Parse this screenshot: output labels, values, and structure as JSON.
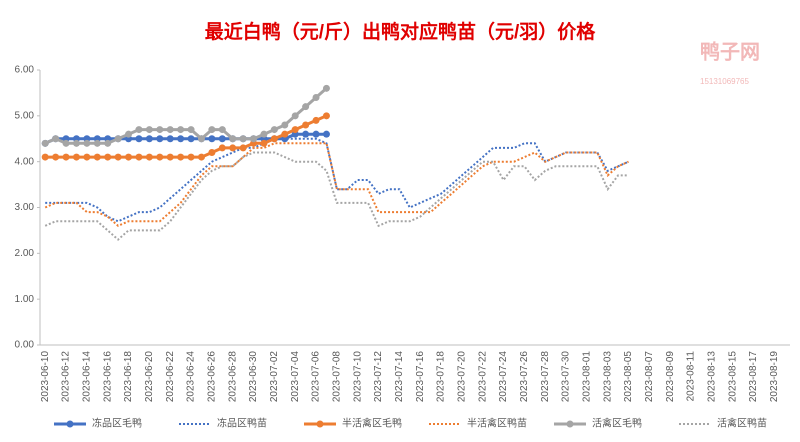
{
  "chart_data": {
    "type": "line",
    "title": "最近白鸭（元/斤）出鸭对应鸭苗（元/羽）价格",
    "watermark": "鸭子网",
    "watermark_phone": "15131069765",
    "categories": [
      "2023-06-10",
      null,
      "2023-06-12",
      null,
      "2023-06-14",
      null,
      "2023-06-16",
      null,
      "2023-06-18",
      null,
      "2023-06-20",
      null,
      "2023-06-22",
      null,
      "2023-06-24",
      null,
      "2023-06-26",
      null,
      "2023-06-28",
      null,
      "2023-06-30",
      null,
      "2023-07-02",
      null,
      "2023-07-04",
      null,
      "2023-07-06",
      null,
      "2023-07-08",
      null,
      "2023-07-10",
      null,
      "2023-07-12",
      null,
      "2023-07-14",
      null,
      "2023-07-16",
      null,
      "2023-07-18",
      null,
      "2023-07-20",
      null,
      "2023-07-22",
      null,
      "2023-07-24",
      null,
      "2023-07-26",
      null,
      "2023-07-28",
      null,
      "2023-07-30",
      null,
      "2023-08-01",
      null,
      "2023-08-03",
      null,
      "2023-08-05",
      null,
      "2023-08-07",
      null,
      "2023-08-09",
      null,
      "2023-08-11",
      null,
      "2023-08-13",
      null,
      "2023-08-15",
      null,
      "2023-08-17",
      null,
      "2023-08-19",
      null
    ],
    "ylim": [
      0,
      6
    ],
    "yticks": [
      {
        "value": 0,
        "label": "0.00"
      },
      {
        "value": 1,
        "label": "1.00"
      },
      {
        "value": 2,
        "label": "2.00"
      },
      {
        "value": 3,
        "label": "3.00"
      },
      {
        "value": 4,
        "label": "4.00"
      },
      {
        "value": 5,
        "label": "5.00"
      },
      {
        "value": 6,
        "label": "6.00"
      }
    ],
    "legend": "bottom",
    "series": [
      {
        "name": "冻品区毛鸭",
        "color": "#4472c4",
        "style": "solid",
        "marker": true,
        "values": [
          4.4,
          4.5,
          4.5,
          4.5,
          4.5,
          4.5,
          4.5,
          4.5,
          4.5,
          4.5,
          4.5,
          4.5,
          4.5,
          4.5,
          4.5,
          4.5,
          4.5,
          4.5,
          4.5,
          4.5,
          4.5,
          4.5,
          4.5,
          4.5,
          4.6,
          4.6,
          4.6,
          4.6,
          null,
          null,
          null,
          null,
          null,
          null,
          null,
          null,
          null,
          null,
          null,
          null,
          null,
          null,
          null,
          null,
          null,
          null,
          null,
          null,
          null,
          null,
          null,
          null,
          null,
          null,
          null,
          null,
          null,
          null,
          null,
          null,
          null,
          null,
          null,
          null,
          null,
          null,
          null,
          null,
          null,
          null,
          null,
          null
        ]
      },
      {
        "name": "冻品区鸭苗",
        "color": "#4472c4",
        "style": "dotted",
        "marker": false,
        "values": [
          3.1,
          3.1,
          3.1,
          3.1,
          3.1,
          3.0,
          2.8,
          2.7,
          2.8,
          2.9,
          2.9,
          3.0,
          3.2,
          3.4,
          3.6,
          3.8,
          4.0,
          4.1,
          4.2,
          4.3,
          4.3,
          4.4,
          4.5,
          4.5,
          4.5,
          4.5,
          4.5,
          4.4,
          3.4,
          3.4,
          3.6,
          3.6,
          3.3,
          3.4,
          3.4,
          3.0,
          3.1,
          3.2,
          3.3,
          3.5,
          3.7,
          3.9,
          4.1,
          4.3,
          4.3,
          4.3,
          4.4,
          4.4,
          4.0,
          4.1,
          4.2,
          4.2,
          4.2,
          4.2,
          3.8,
          3.9,
          4.0,
          null,
          null,
          null,
          null,
          null,
          null,
          null,
          null,
          null,
          null,
          null,
          null,
          null,
          null,
          null
        ]
      },
      {
        "name": "半活禽区毛鸭",
        "color": "#ed7d31",
        "style": "solid",
        "marker": true,
        "values": [
          4.1,
          4.1,
          4.1,
          4.1,
          4.1,
          4.1,
          4.1,
          4.1,
          4.1,
          4.1,
          4.1,
          4.1,
          4.1,
          4.1,
          4.1,
          4.1,
          4.2,
          4.3,
          4.3,
          4.3,
          4.4,
          4.4,
          4.5,
          4.6,
          4.7,
          4.8,
          4.9,
          5.0,
          null,
          null,
          null,
          null,
          null,
          null,
          null,
          null,
          null,
          null,
          null,
          null,
          null,
          null,
          null,
          null,
          null,
          null,
          null,
          null,
          null,
          null,
          null,
          null,
          null,
          null,
          null,
          null,
          null,
          null,
          null,
          null,
          null,
          null,
          null,
          null,
          null,
          null,
          null,
          null,
          null,
          null,
          null,
          null
        ]
      },
      {
        "name": "半活禽区鸭苗",
        "color": "#ed7d31",
        "style": "dotted",
        "marker": false,
        "values": [
          3.0,
          3.1,
          3.1,
          3.1,
          2.9,
          2.9,
          2.8,
          2.6,
          2.7,
          2.7,
          2.7,
          2.7,
          2.9,
          3.1,
          3.4,
          3.7,
          3.9,
          3.9,
          3.9,
          4.1,
          4.3,
          4.3,
          4.4,
          4.4,
          4.4,
          4.4,
          4.4,
          4.4,
          3.4,
          3.4,
          3.4,
          3.4,
          2.9,
          2.9,
          2.9,
          2.9,
          2.9,
          2.9,
          3.1,
          3.3,
          3.5,
          3.7,
          3.9,
          4.0,
          4.0,
          4.0,
          4.1,
          4.2,
          4.0,
          4.1,
          4.2,
          4.2,
          4.2,
          4.2,
          3.7,
          3.9,
          4.0,
          null,
          null,
          null,
          null,
          null,
          null,
          null,
          null,
          null,
          null,
          null,
          null,
          null,
          null,
          null
        ]
      },
      {
        "name": "活禽区毛鸭",
        "color": "#a5a5a5",
        "style": "solid",
        "marker": true,
        "values": [
          4.4,
          4.5,
          4.4,
          4.4,
          4.4,
          4.4,
          4.4,
          4.5,
          4.6,
          4.7,
          4.7,
          4.7,
          4.7,
          4.7,
          4.7,
          4.5,
          4.7,
          4.7,
          4.5,
          4.5,
          4.5,
          4.6,
          4.7,
          4.8,
          5.0,
          5.2,
          5.4,
          5.6,
          null,
          null,
          null,
          null,
          null,
          null,
          null,
          null,
          null,
          null,
          null,
          null,
          null,
          null,
          null,
          null,
          null,
          null,
          null,
          null,
          null,
          null,
          null,
          null,
          null,
          null,
          null,
          null,
          null,
          null,
          null,
          null,
          null,
          null,
          null,
          null,
          null,
          null,
          null,
          null,
          null,
          null,
          null,
          null
        ]
      },
      {
        "name": "活禽区鸭苗",
        "color": "#a5a5a5",
        "style": "dotted",
        "marker": false,
        "values": [
          2.6,
          2.7,
          2.7,
          2.7,
          2.7,
          2.7,
          2.5,
          2.3,
          2.5,
          2.5,
          2.5,
          2.5,
          2.7,
          3.0,
          3.3,
          3.6,
          3.8,
          3.9,
          3.9,
          4.1,
          4.2,
          4.2,
          4.2,
          4.1,
          4.0,
          4.0,
          4.0,
          3.8,
          3.1,
          3.1,
          3.1,
          3.1,
          2.6,
          2.7,
          2.7,
          2.7,
          2.8,
          3.0,
          3.2,
          3.4,
          3.6,
          3.8,
          4.0,
          4.0,
          3.6,
          3.9,
          3.9,
          3.6,
          3.8,
          3.9,
          3.9,
          3.9,
          3.9,
          3.9,
          3.4,
          3.7,
          3.7,
          null,
          null,
          null,
          null,
          null,
          null,
          null,
          null,
          null,
          null,
          null,
          null,
          null,
          null,
          null
        ]
      }
    ]
  }
}
